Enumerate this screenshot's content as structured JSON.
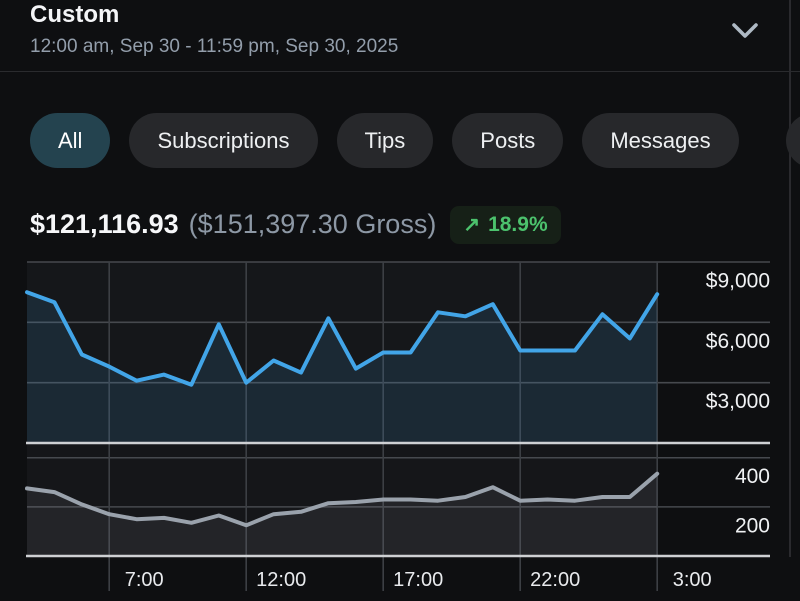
{
  "header": {
    "title": "Custom",
    "date_range": "12:00 am, Sep 30 - 11:59 pm, Sep 30, 2025",
    "collapse_icon": "chevron-down-icon"
  },
  "filters": {
    "items": [
      {
        "label": "All",
        "active": true
      },
      {
        "label": "Subscriptions",
        "active": false
      },
      {
        "label": "Tips",
        "active": false
      },
      {
        "label": "Posts",
        "active": false
      },
      {
        "label": "Messages",
        "active": false
      }
    ],
    "clipped_item_visible": true
  },
  "stats": {
    "net": "$121,116.93",
    "gross": "($151,397.30 Gross)",
    "trend_arrow": "↗",
    "change": "18.9%"
  },
  "colors": {
    "page_bg": "#0e0f11",
    "chip_bg": "#27282b",
    "chip_active_bg": "#24434f",
    "badge_bg": "#162017",
    "trend_green": "#4cc26d",
    "earnings_line": "#42a5e8",
    "earnings_fill": "rgba(66,165,232,0.13)",
    "count_line": "#9aa2ac",
    "count_fill": "rgba(222,230,238,0.07)",
    "plot_bg_top": "#15171a",
    "plot_bg_bottom": "#151619",
    "h_grid": "#46494e",
    "v_grid": "#3c3f44",
    "axis_bright": "#ced0d3",
    "axis_label": "#f0f2f4",
    "x_label": "#e8eaed"
  },
  "chart_data": [
    {
      "type": "area",
      "series_name": "earnings-usd",
      "values": [
        7500,
        7000,
        4400,
        3800,
        3100,
        3400,
        2900,
        5900,
        3000,
        4100,
        3500,
        6200,
        3700,
        4500,
        4500,
        6500,
        6300,
        6900,
        4600,
        4600,
        4600,
        6400,
        5200,
        7400
      ],
      "ylim": [
        0,
        9000
      ],
      "y_ticks": [
        9000,
        6000,
        3000
      ],
      "y_tick_labels": [
        "$9,000",
        "$6,000",
        "$3,000"
      ],
      "x_tick_indices": [
        3,
        8,
        13,
        18,
        23
      ],
      "x_tick_labels": [
        "7:00",
        "12:00",
        "17:00",
        "22:00",
        "3:00"
      ],
      "grid": true,
      "legend": "none"
    },
    {
      "type": "area",
      "series_name": "activity-count",
      "values": [
        275,
        260,
        210,
        170,
        150,
        155,
        135,
        165,
        125,
        170,
        180,
        215,
        220,
        230,
        230,
        225,
        240,
        280,
        225,
        230,
        225,
        240,
        240,
        335
      ],
      "ylim": [
        0,
        460
      ],
      "y_ticks": [
        400,
        200
      ],
      "y_tick_labels": [
        "400",
        "200"
      ],
      "x_tick_indices": [
        3,
        8,
        13,
        18,
        23
      ],
      "x_tick_labels": [
        "7:00",
        "12:00",
        "17:00",
        "22:00",
        "3:00"
      ],
      "grid": true,
      "legend": "none"
    }
  ]
}
